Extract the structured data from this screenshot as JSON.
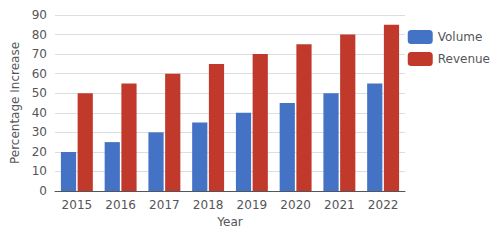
{
  "chart_data": {
    "type": "bar",
    "categories": [
      "2015",
      "2016",
      "2017",
      "2018",
      "2019",
      "2020",
      "2021",
      "2022"
    ],
    "series": [
      {
        "name": "Volume",
        "color": "#4472C4",
        "values": [
          20,
          25,
          30,
          35,
          40,
          45,
          50,
          55
        ]
      },
      {
        "name": "Revenue",
        "color": "#C0392B",
        "values": [
          50,
          55,
          60,
          65,
          70,
          75,
          80,
          85
        ]
      }
    ],
    "xlabel": "Year",
    "ylabel": "Percentage Increase",
    "ylim": [
      0,
      90
    ],
    "yticks": [
      0,
      10,
      20,
      30,
      40,
      50,
      60,
      70,
      80,
      90
    ],
    "grid": true,
    "legend": "right"
  }
}
